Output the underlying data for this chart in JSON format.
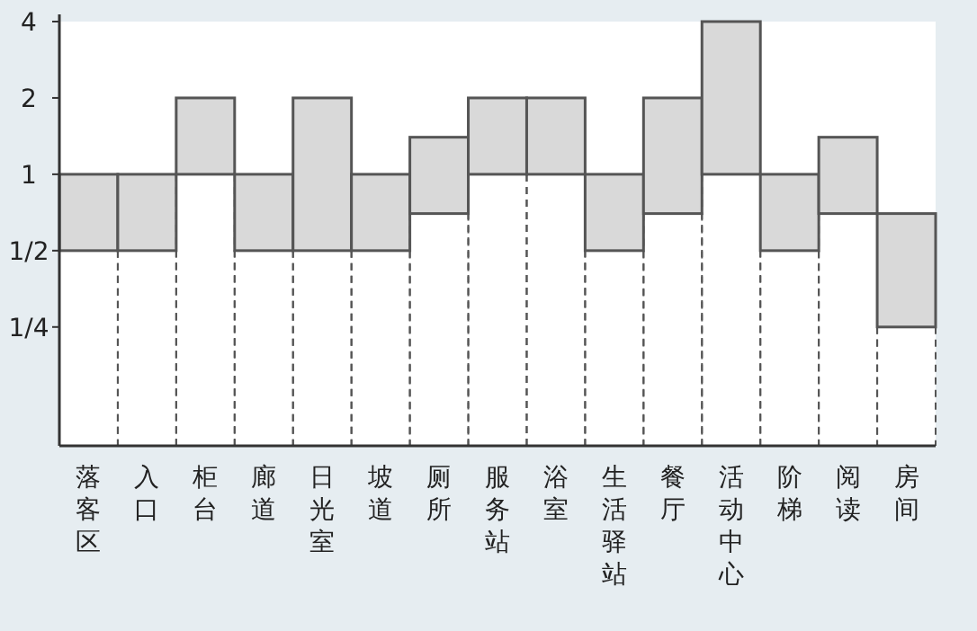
{
  "chart_data": {
    "type": "bar",
    "log": true,
    "grid": "x",
    "categories": [
      "落客区",
      "入口",
      "柜台",
      "廊道",
      "日光室",
      "坡道",
      "厕所",
      "服务站",
      "浴室",
      "生活驿站",
      "餐厅",
      "活动中心",
      "阶梯",
      "阅读",
      "房间"
    ],
    "base": [
      0.5,
      0.5,
      1,
      0.5,
      0.5,
      0.5,
      0.7,
      1,
      1,
      0.5,
      0.7,
      1,
      0.5,
      0.7,
      0.25
    ],
    "values": [
      0.5,
      0.5,
      1,
      0.5,
      1.5,
      0.5,
      0.7,
      1,
      1,
      0.5,
      1.3,
      3,
      0.5,
      0.7,
      0.45
    ],
    "color": "#d9d9d9",
    "ylim": [
      0.085,
      4
    ],
    "yticks": [
      {
        "value": 0.25,
        "label": "1/4"
      },
      {
        "value": 0.5,
        "label": "1/2"
      },
      1,
      2,
      4
    ]
  }
}
